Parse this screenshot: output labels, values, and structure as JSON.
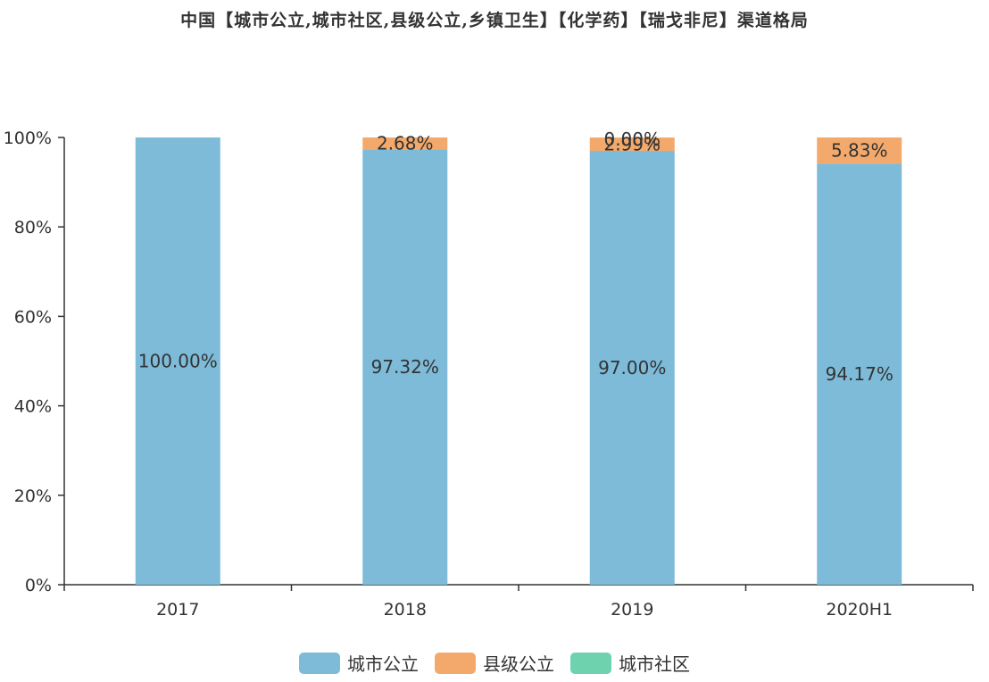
{
  "colors": {
    "city_public": "#7DBBD9",
    "county_public": "#F3A96B",
    "city_community": "#6FD2AE",
    "axis": "#333333",
    "text": "#333333"
  },
  "chart_data": {
    "type": "bar",
    "stacked": true,
    "title": "中国【城市公立,城市社区,县级公立,乡镇卫生】【化学药】【瑞戈非尼】渠道格局",
    "xlabel": "",
    "ylabel": "",
    "ylim": [
      0,
      100
    ],
    "y_ticks": [
      "0%",
      "20%",
      "40%",
      "60%",
      "80%",
      "100%"
    ],
    "y_tick_values": [
      0,
      20,
      40,
      60,
      80,
      100
    ],
    "categories": [
      "2017",
      "2018",
      "2019",
      "2020H1"
    ],
    "series": [
      {
        "name": "城市公立",
        "color_key": "city_public",
        "values": [
          100.0,
          97.32,
          97.0,
          94.17
        ],
        "labels": [
          "100.00%",
          "97.32%",
          "97.00%",
          "94.17%"
        ]
      },
      {
        "name": "县级公立",
        "color_key": "county_public",
        "values": [
          0,
          2.68,
          2.99,
          5.83
        ],
        "labels": [
          "",
          "2.68%",
          "2.99%",
          "5.83%"
        ]
      },
      {
        "name": "城市社区",
        "color_key": "city_community",
        "values": [
          0,
          0,
          0.0,
          0
        ],
        "labels": [
          "",
          "",
          "0.00%",
          ""
        ]
      }
    ],
    "legend": [
      "城市公立",
      "县级公立",
      "城市社区"
    ],
    "legend_position": "bottom",
    "grid": false
  }
}
